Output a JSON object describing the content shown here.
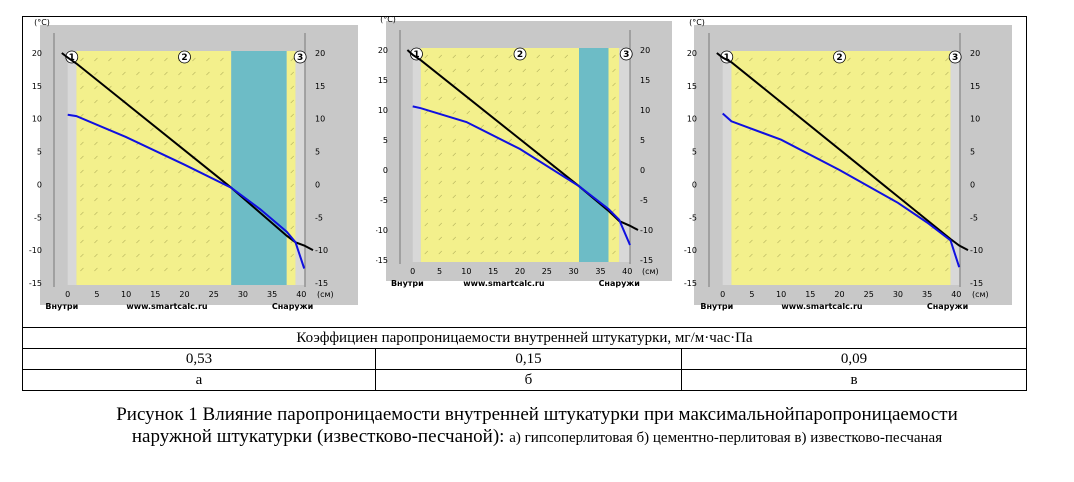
{
  "table": {
    "header": "Коэффициен паропроницаемости внутренней штукатурки, мг/м·час·Па",
    "values": [
      "0,53",
      "0,15",
      "0,09"
    ],
    "labels": [
      "а",
      "б",
      "в"
    ]
  },
  "caption": {
    "line1": "Рисунок 1 Влияние паропроницаемости внутренней штукатурки при максимальнойпаропроницаемости",
    "line2_main": "наружной штукатурки (известково-песчаной): ",
    "line2_small": "а) гипсоперлитовая б) цементно-перлитовая  в) известково-песчаная"
  },
  "chart_data": [
    {
      "type": "line",
      "panel": "а",
      "ylabel_unit": "(°C)",
      "xlabel_unit": "(см)",
      "x_ticks": [
        "0",
        "5",
        "10",
        "15",
        "20",
        "25",
        "30",
        "35",
        "40"
      ],
      "y_ticks": [
        "20",
        "15",
        "10",
        "5",
        "0",
        "-5",
        "-10",
        "-15"
      ],
      "xlim": [
        -2,
        42
      ],
      "ylim": [
        -15,
        20
      ],
      "inside_label": "Внутри",
      "outside_label": "Снаружи",
      "watermark": "www.smartcalc.ru",
      "layer_labels": [
        "1",
        "2",
        "3"
      ],
      "layers": [
        {
          "from": 0,
          "to": 1.5,
          "fill": "#d8d8d8"
        },
        {
          "from": 1.5,
          "to": 28,
          "fill": "#f3f08c"
        },
        {
          "from": 28,
          "to": 37.5,
          "fill": "#6dbcc6"
        },
        {
          "from": 37.5,
          "to": 39,
          "fill": "#f3f08c"
        },
        {
          "from": 39,
          "to": 40.5,
          "fill": "#d8d8d8"
        }
      ],
      "series": [
        {
          "color": "#000000",
          "x": [
            -1,
            0,
            1.5,
            28,
            37.5,
            39,
            40.5,
            42
          ],
          "y": [
            20,
            19.3,
            18.4,
            -0.5,
            -7.8,
            -8.8,
            -9.3,
            -10
          ]
        },
        {
          "color": "#1010e0",
          "x": [
            0,
            1.5,
            10,
            20,
            28,
            33,
            37.5,
            39,
            40.5
          ],
          "y": [
            10.6,
            10.4,
            7.2,
            3,
            -0.5,
            -3.8,
            -7.2,
            -8.8,
            -12.8
          ]
        }
      ]
    },
    {
      "type": "line",
      "panel": "б",
      "ylabel_unit": "(°C)",
      "xlabel_unit": "(см)",
      "x_ticks": [
        "0",
        "5",
        "10",
        "15",
        "20",
        "25",
        "30",
        "35",
        "40"
      ],
      "y_ticks": [
        "20",
        "15",
        "10",
        "5",
        "0",
        "-5",
        "-10",
        "-15"
      ],
      "xlim": [
        -2,
        42
      ],
      "ylim": [
        -15,
        20
      ],
      "inside_label": "Внутри",
      "outside_label": "Снаружи",
      "watermark": "www.smartcalc.ru",
      "layer_labels": [
        "1",
        "2",
        "3"
      ],
      "layers": [
        {
          "from": 0,
          "to": 1.5,
          "fill": "#d8d8d8"
        },
        {
          "from": 1.5,
          "to": 31,
          "fill": "#f3f08c"
        },
        {
          "from": 31,
          "to": 36.5,
          "fill": "#6dbcc6"
        },
        {
          "from": 36.5,
          "to": 38.5,
          "fill": "#f3f08c"
        },
        {
          "from": 38.5,
          "to": 40.5,
          "fill": "#d8d8d8"
        }
      ],
      "series": [
        {
          "color": "#000000",
          "x": [
            -1,
            0,
            1.5,
            31,
            36.5,
            38.5,
            40.5,
            42
          ],
          "y": [
            20,
            19.2,
            18.3,
            -2.7,
            -6.8,
            -8.5,
            -9.3,
            -10
          ]
        },
        {
          "color": "#1010e0",
          "x": [
            0,
            1.5,
            10,
            20,
            31,
            36.5,
            38.5,
            40.5
          ],
          "y": [
            10.6,
            10.3,
            8,
            3.5,
            -2.7,
            -6.5,
            -8.3,
            -12.5
          ]
        }
      ]
    },
    {
      "type": "line",
      "panel": "в",
      "ylabel_unit": "(°C)",
      "xlabel_unit": "(см)",
      "x_ticks": [
        "0",
        "5",
        "10",
        "15",
        "20",
        "25",
        "30",
        "35",
        "40"
      ],
      "y_ticks": [
        "20",
        "15",
        "10",
        "5",
        "0",
        "-5",
        "-10",
        "-15"
      ],
      "xlim": [
        -2,
        42
      ],
      "ylim": [
        -15,
        20
      ],
      "inside_label": "Внутри",
      "outside_label": "Снаружи",
      "watermark": "www.smartcalc.ru",
      "layer_labels": [
        "1",
        "2",
        "3"
      ],
      "layers": [
        {
          "from": 0,
          "to": 1.5,
          "fill": "#d8d8d8"
        },
        {
          "from": 1.5,
          "to": 39,
          "fill": "#f3f08c"
        },
        {
          "from": 39,
          "to": 40.5,
          "fill": "#d8d8d8"
        }
      ],
      "series": [
        {
          "color": "#000000",
          "x": [
            -1,
            0,
            1.5,
            39,
            40.5,
            42
          ],
          "y": [
            20,
            19.3,
            18.6,
            -8.3,
            -9.3,
            -10
          ]
        },
        {
          "color": "#1010e0",
          "x": [
            0,
            1.5,
            10,
            20,
            30,
            35,
            39,
            40.5
          ],
          "y": [
            10.8,
            9.6,
            6.8,
            2.2,
            -2.8,
            -5.8,
            -8.5,
            -12.6
          ]
        }
      ]
    }
  ]
}
